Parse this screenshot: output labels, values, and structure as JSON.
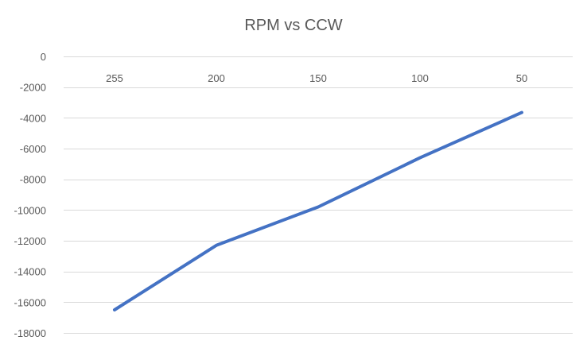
{
  "chart_data": {
    "type": "line",
    "title": "RPM vs CCW",
    "xlabel": "",
    "ylabel": "",
    "categories": [
      "255",
      "200",
      "150",
      "100",
      "50"
    ],
    "series": [
      {
        "values": [
          -16500,
          -12300,
          -9800,
          -6600,
          -3650
        ],
        "color": "#4472C4"
      }
    ],
    "ylim": [
      -18000,
      0
    ],
    "y_ticks": [
      0,
      -2000,
      -4000,
      -6000,
      -8000,
      -10000,
      -12000,
      -14000,
      -16000,
      -18000
    ],
    "y_tick_labels": [
      "0",
      "-2000",
      "-4000",
      "-6000",
      "-8000",
      "-10000",
      "-12000",
      "-14000",
      "-16000",
      "-18000"
    ],
    "x_axis_position": "top",
    "grid": true,
    "legend": "none",
    "gridline_color": "#d9d9d9",
    "text_color": "#595959"
  }
}
